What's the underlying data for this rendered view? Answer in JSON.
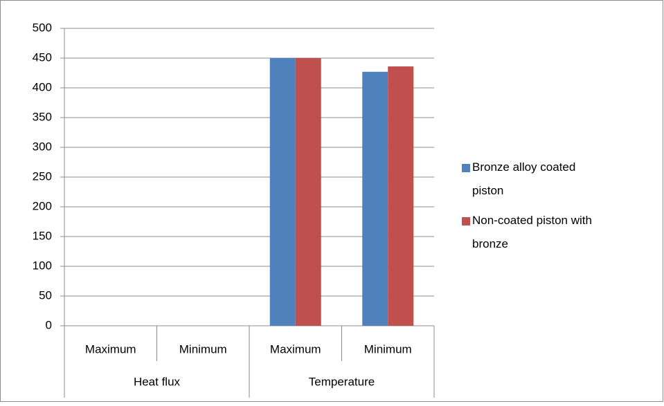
{
  "chart_data": {
    "type": "bar",
    "categories": [
      "Maximum",
      "Minimum",
      "Maximum",
      "Minimum"
    ],
    "groups": [
      "Heat flux",
      "Temperature"
    ],
    "series": [
      {
        "name": "Bronze alloy coated piston",
        "color": "#4f81bd",
        "values": [
          0,
          0,
          450,
          427
        ]
      },
      {
        "name": "Non-coated piston with bronze",
        "color": "#c0504d",
        "values": [
          0,
          0,
          450,
          436
        ]
      }
    ],
    "ylim": [
      0,
      500
    ],
    "yticks": [
      0,
      50,
      100,
      150,
      200,
      250,
      300,
      350,
      400,
      450,
      500
    ],
    "grid": true,
    "legend": "right"
  }
}
